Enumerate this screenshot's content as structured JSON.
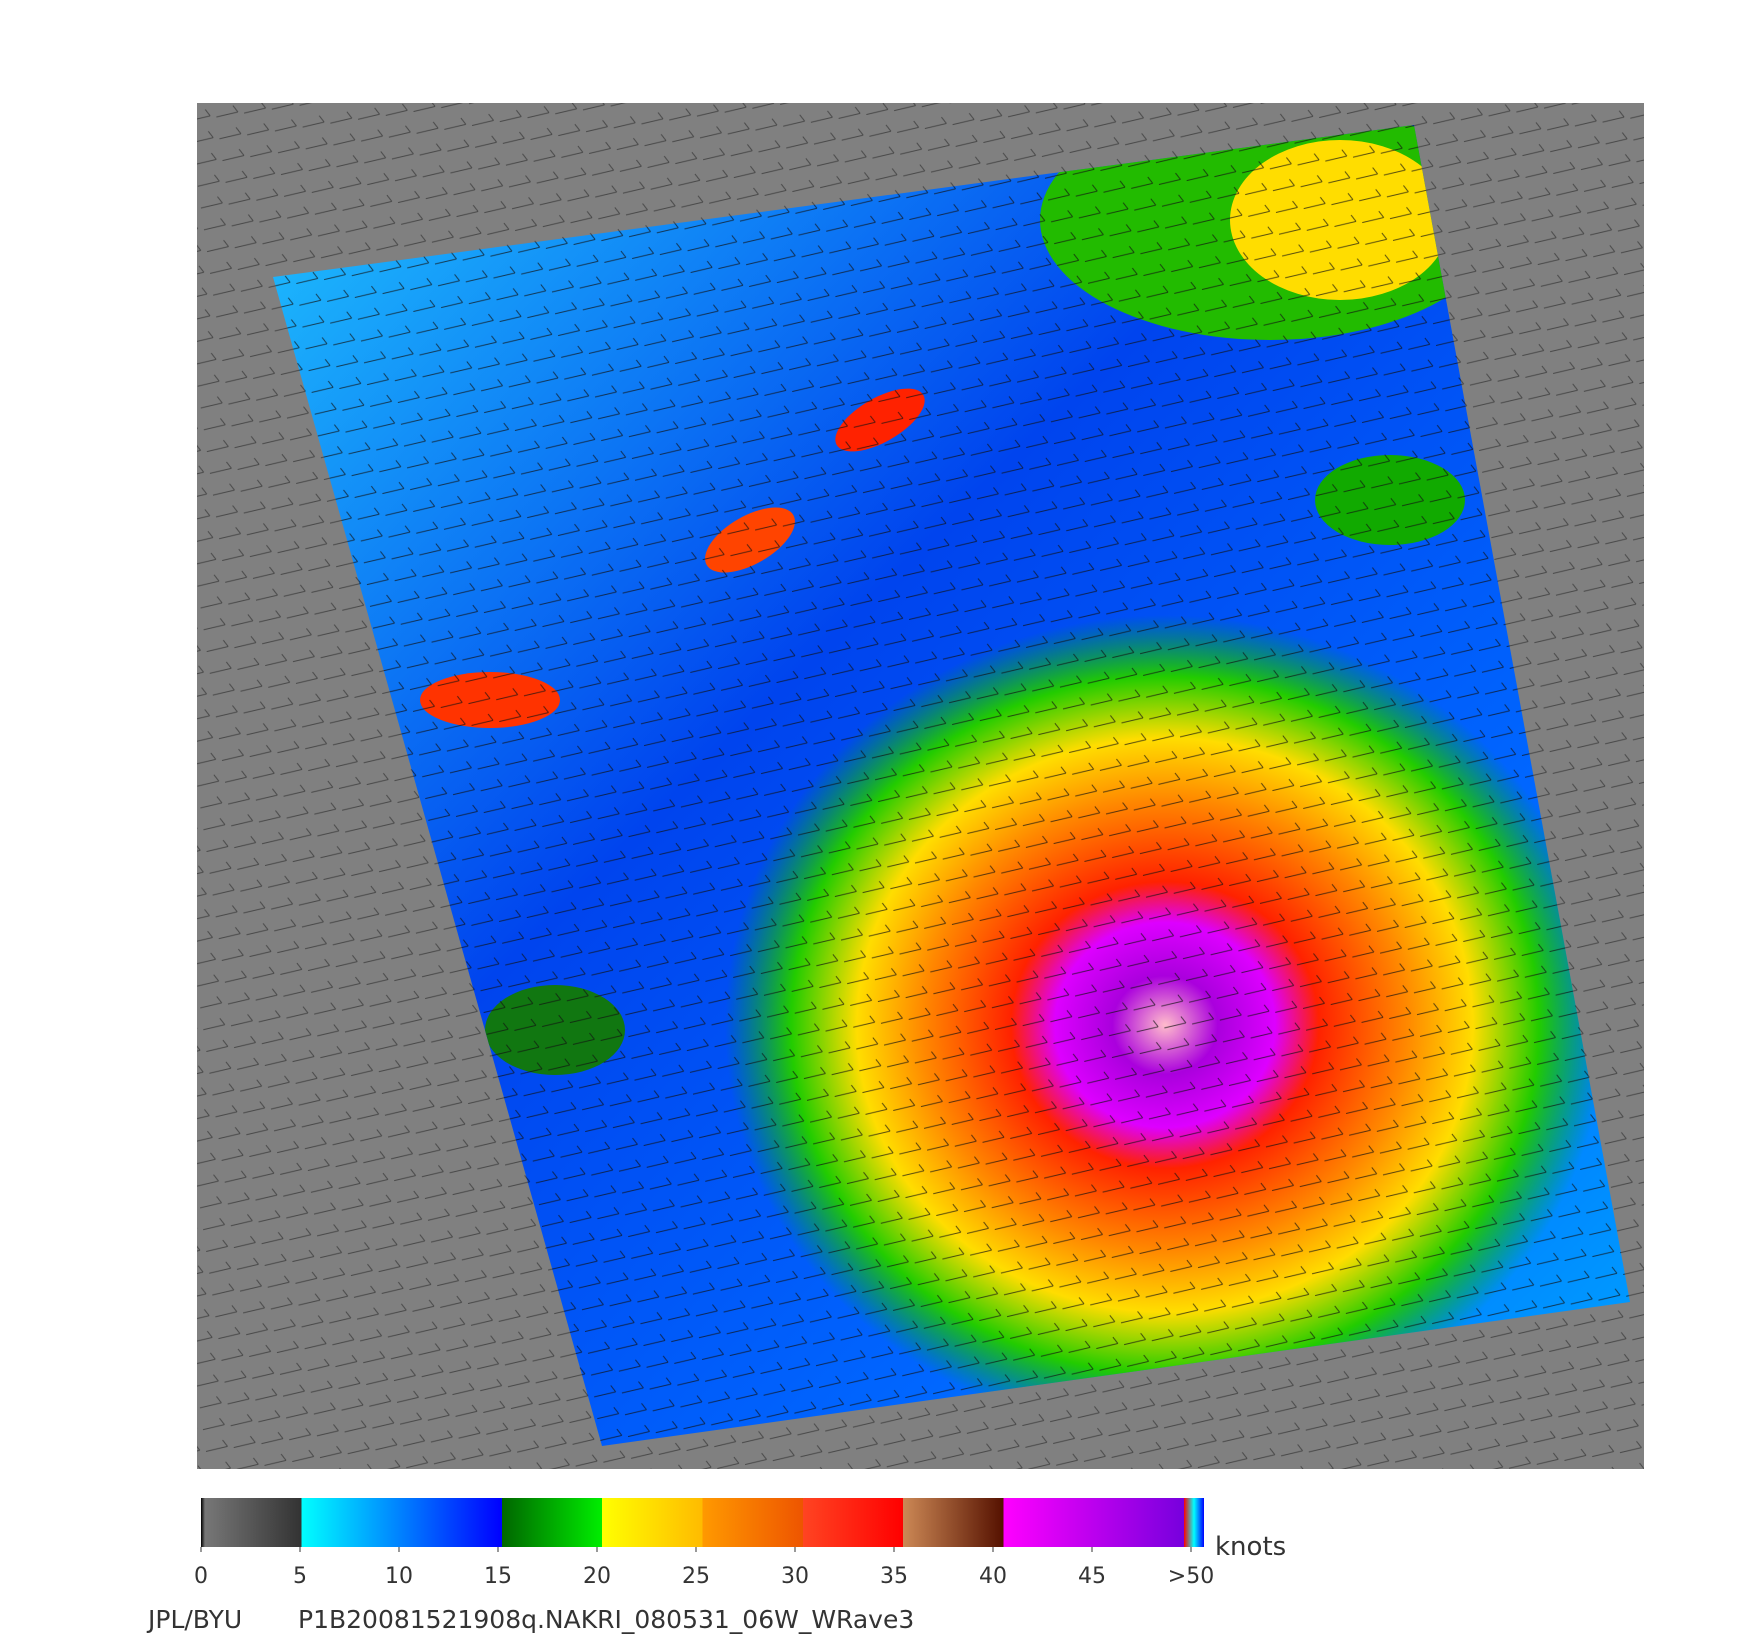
{
  "colorbar": {
    "lim": [
      0,
      50
    ],
    "ticks": [
      0,
      5,
      10,
      15,
      20,
      25,
      30,
      35,
      40,
      45,
      {
        "value": 50,
        "label": ">50"
      }
    ],
    "unit": "knots"
  },
  "caption": {
    "source": "JPL/BYU",
    "file": "P1B20081521908q.NAKRI_080531_06W_WRave3"
  }
}
